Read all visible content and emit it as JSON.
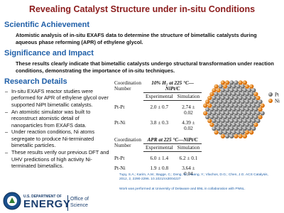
{
  "title": "Revealing Catalyst Structure under in-situ Conditions",
  "sections": [
    {
      "heading": "Scientific Achievement",
      "text": "Atomistic analysis of in-situ EXAFS data to determine the structure of bimetallic catalysts during aqueous phase reforming (APR) of ethylene glycol."
    },
    {
      "heading": "Significance and Impact",
      "text": "These results clearly indicate that bimetallic catalysts undergo structural transformation under reaction conditions, demonstrating the importance of in-situ techniques."
    }
  ],
  "research_details": {
    "heading": "Research Details",
    "bullets": [
      "In-situ EXAFS reactor studies were performed for APR of ethylene glycol over supported NiPt bimetallic catalysts.",
      "An atomistic simulator was built to reconstruct atomistic detail of nanoparticles from EXAFS data.",
      "Under reaction conditions, Ni atoms segregate to produce Ni-terminated bimetallic particles.",
      "These results verify our previous DFT and UHV predictions of high activity Ni-terminated bimetallics."
    ]
  },
  "tables": [
    {
      "row_header": "Coordination Number",
      "condition": "10% H₂ at 225 °C—NiPt/C",
      "columns": [
        "Experimental",
        "Simulation"
      ],
      "rows": [
        [
          "Pt-Pt",
          "2.0 ± 0.7",
          "2.74 ± 0.02"
        ],
        [
          "Pt-Ni",
          "3.8 ± 0.3",
          "4.39 ± 0.02"
        ]
      ]
    },
    {
      "row_header": "Coordination Number",
      "condition": "APR at 225 °C—NiPt/C",
      "columns": [
        "Experimental",
        "Simulation"
      ],
      "rows": [
        [
          "Pt-Pt",
          "6.0 ± 1.4",
          "6.2 ± 0.1"
        ],
        [
          "Pt-Ni",
          "1.9 ± 0.8",
          "3.64 ± 0.04"
        ]
      ]
    }
  ],
  "legend": [
    "Pt",
    "Ni"
  ],
  "citation": "Tupy, S.A.; Karim, A.M.; Bagge, C.; Deng, W.; Huang, Y.; Vlachos, D.G.; Chen, J.G. ACS Catalysis, 2012, 2, 2290-2296. 10.1021/cs3004227",
  "credit": "Work was performed at University of Delaware and BNL in collaboration with PNNL.",
  "footer": {
    "department": "U.S. DEPARTMENT OF",
    "agency": "ENERGY",
    "office": [
      "Office of",
      "Science"
    ]
  }
}
